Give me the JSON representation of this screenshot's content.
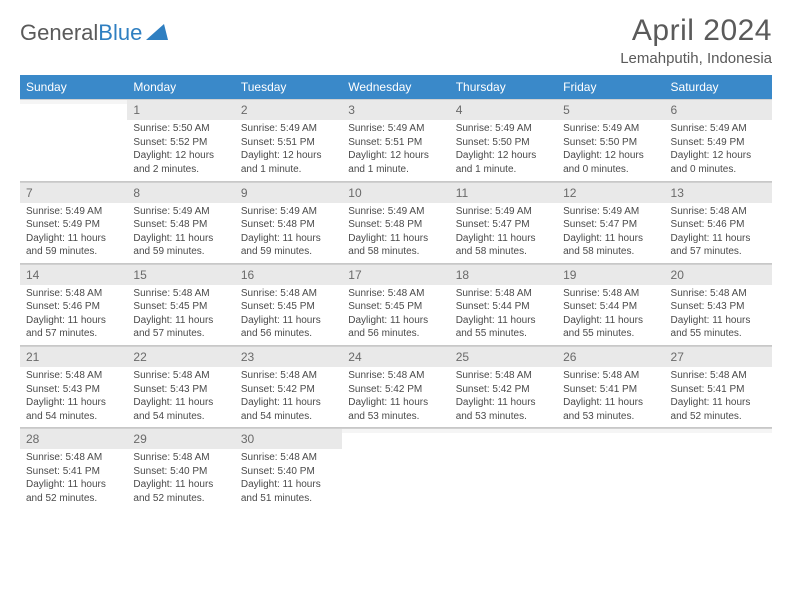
{
  "logo": {
    "text1": "General",
    "text2": "Blue"
  },
  "title": "April 2024",
  "location": "Lemahputih, Indonesia",
  "weekdays": [
    "Sunday",
    "Monday",
    "Tuesday",
    "Wednesday",
    "Thursday",
    "Friday",
    "Saturday"
  ],
  "colors": {
    "header_bg": "#3a89c9",
    "header_text": "#ffffff",
    "daynum_bg": "#e9e9e9",
    "text": "#4a4a4a"
  },
  "weeks": [
    [
      {
        "n": "",
        "sr": "",
        "ss": "",
        "dl": ""
      },
      {
        "n": "1",
        "sr": "Sunrise: 5:50 AM",
        "ss": "Sunset: 5:52 PM",
        "dl": "Daylight: 12 hours and 2 minutes."
      },
      {
        "n": "2",
        "sr": "Sunrise: 5:49 AM",
        "ss": "Sunset: 5:51 PM",
        "dl": "Daylight: 12 hours and 1 minute."
      },
      {
        "n": "3",
        "sr": "Sunrise: 5:49 AM",
        "ss": "Sunset: 5:51 PM",
        "dl": "Daylight: 12 hours and 1 minute."
      },
      {
        "n": "4",
        "sr": "Sunrise: 5:49 AM",
        "ss": "Sunset: 5:50 PM",
        "dl": "Daylight: 12 hours and 1 minute."
      },
      {
        "n": "5",
        "sr": "Sunrise: 5:49 AM",
        "ss": "Sunset: 5:50 PM",
        "dl": "Daylight: 12 hours and 0 minutes."
      },
      {
        "n": "6",
        "sr": "Sunrise: 5:49 AM",
        "ss": "Sunset: 5:49 PM",
        "dl": "Daylight: 12 hours and 0 minutes."
      }
    ],
    [
      {
        "n": "7",
        "sr": "Sunrise: 5:49 AM",
        "ss": "Sunset: 5:49 PM",
        "dl": "Daylight: 11 hours and 59 minutes."
      },
      {
        "n": "8",
        "sr": "Sunrise: 5:49 AM",
        "ss": "Sunset: 5:48 PM",
        "dl": "Daylight: 11 hours and 59 minutes."
      },
      {
        "n": "9",
        "sr": "Sunrise: 5:49 AM",
        "ss": "Sunset: 5:48 PM",
        "dl": "Daylight: 11 hours and 59 minutes."
      },
      {
        "n": "10",
        "sr": "Sunrise: 5:49 AM",
        "ss": "Sunset: 5:48 PM",
        "dl": "Daylight: 11 hours and 58 minutes."
      },
      {
        "n": "11",
        "sr": "Sunrise: 5:49 AM",
        "ss": "Sunset: 5:47 PM",
        "dl": "Daylight: 11 hours and 58 minutes."
      },
      {
        "n": "12",
        "sr": "Sunrise: 5:49 AM",
        "ss": "Sunset: 5:47 PM",
        "dl": "Daylight: 11 hours and 58 minutes."
      },
      {
        "n": "13",
        "sr": "Sunrise: 5:48 AM",
        "ss": "Sunset: 5:46 PM",
        "dl": "Daylight: 11 hours and 57 minutes."
      }
    ],
    [
      {
        "n": "14",
        "sr": "Sunrise: 5:48 AM",
        "ss": "Sunset: 5:46 PM",
        "dl": "Daylight: 11 hours and 57 minutes."
      },
      {
        "n": "15",
        "sr": "Sunrise: 5:48 AM",
        "ss": "Sunset: 5:45 PM",
        "dl": "Daylight: 11 hours and 57 minutes."
      },
      {
        "n": "16",
        "sr": "Sunrise: 5:48 AM",
        "ss": "Sunset: 5:45 PM",
        "dl": "Daylight: 11 hours and 56 minutes."
      },
      {
        "n": "17",
        "sr": "Sunrise: 5:48 AM",
        "ss": "Sunset: 5:45 PM",
        "dl": "Daylight: 11 hours and 56 minutes."
      },
      {
        "n": "18",
        "sr": "Sunrise: 5:48 AM",
        "ss": "Sunset: 5:44 PM",
        "dl": "Daylight: 11 hours and 55 minutes."
      },
      {
        "n": "19",
        "sr": "Sunrise: 5:48 AM",
        "ss": "Sunset: 5:44 PM",
        "dl": "Daylight: 11 hours and 55 minutes."
      },
      {
        "n": "20",
        "sr": "Sunrise: 5:48 AM",
        "ss": "Sunset: 5:43 PM",
        "dl": "Daylight: 11 hours and 55 minutes."
      }
    ],
    [
      {
        "n": "21",
        "sr": "Sunrise: 5:48 AM",
        "ss": "Sunset: 5:43 PM",
        "dl": "Daylight: 11 hours and 54 minutes."
      },
      {
        "n": "22",
        "sr": "Sunrise: 5:48 AM",
        "ss": "Sunset: 5:43 PM",
        "dl": "Daylight: 11 hours and 54 minutes."
      },
      {
        "n": "23",
        "sr": "Sunrise: 5:48 AM",
        "ss": "Sunset: 5:42 PM",
        "dl": "Daylight: 11 hours and 54 minutes."
      },
      {
        "n": "24",
        "sr": "Sunrise: 5:48 AM",
        "ss": "Sunset: 5:42 PM",
        "dl": "Daylight: 11 hours and 53 minutes."
      },
      {
        "n": "25",
        "sr": "Sunrise: 5:48 AM",
        "ss": "Sunset: 5:42 PM",
        "dl": "Daylight: 11 hours and 53 minutes."
      },
      {
        "n": "26",
        "sr": "Sunrise: 5:48 AM",
        "ss": "Sunset: 5:41 PM",
        "dl": "Daylight: 11 hours and 53 minutes."
      },
      {
        "n": "27",
        "sr": "Sunrise: 5:48 AM",
        "ss": "Sunset: 5:41 PM",
        "dl": "Daylight: 11 hours and 52 minutes."
      }
    ],
    [
      {
        "n": "28",
        "sr": "Sunrise: 5:48 AM",
        "ss": "Sunset: 5:41 PM",
        "dl": "Daylight: 11 hours and 52 minutes."
      },
      {
        "n": "29",
        "sr": "Sunrise: 5:48 AM",
        "ss": "Sunset: 5:40 PM",
        "dl": "Daylight: 11 hours and 52 minutes."
      },
      {
        "n": "30",
        "sr": "Sunrise: 5:48 AM",
        "ss": "Sunset: 5:40 PM",
        "dl": "Daylight: 11 hours and 51 minutes."
      },
      {
        "n": "",
        "sr": "",
        "ss": "",
        "dl": ""
      },
      {
        "n": "",
        "sr": "",
        "ss": "",
        "dl": ""
      },
      {
        "n": "",
        "sr": "",
        "ss": "",
        "dl": ""
      },
      {
        "n": "",
        "sr": "",
        "ss": "",
        "dl": ""
      }
    ]
  ]
}
